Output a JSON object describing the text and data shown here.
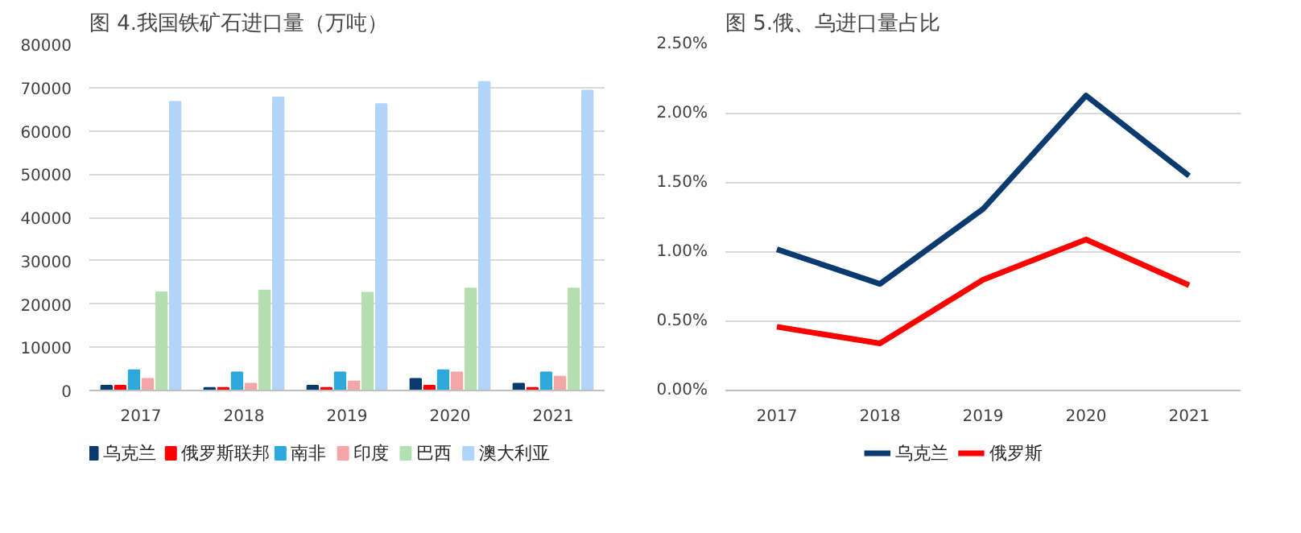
{
  "chart_data": [
    {
      "type": "bar",
      "title": "图 4.我国铁矿石进口量（万吨）",
      "categories": [
        "2017",
        "2018",
        "2019",
        "2020",
        "2021"
      ],
      "series": [
        {
          "name": "乌克兰",
          "color": "#0b3a6e",
          "values": [
            1100,
            600,
            1100,
            2700,
            1600
          ]
        },
        {
          "name": "俄罗斯联邦",
          "color": "#ff0000",
          "values": [
            1100,
            600,
            600,
            1100,
            600
          ]
        },
        {
          "name": "南非",
          "color": "#2ea8dc",
          "values": [
            4700,
            4200,
            4200,
            4700,
            4200
          ]
        },
        {
          "name": "印度",
          "color": "#f4a6a6",
          "values": [
            2700,
            1600,
            2100,
            4200,
            3200
          ]
        },
        {
          "name": "巴西",
          "color": "#b3dfb3",
          "values": [
            22700,
            23100,
            22600,
            23600,
            23600
          ]
        },
        {
          "name": "澳大利亚",
          "color": "#b0d4fa",
          "values": [
            66700,
            67700,
            66200,
            71300,
            69300
          ]
        }
      ],
      "ylim": [
        0,
        80000
      ],
      "yticks": [
        0,
        10000,
        20000,
        30000,
        40000,
        50000,
        60000,
        70000,
        80000
      ],
      "grid": "y",
      "legend": "bottom"
    },
    {
      "type": "line",
      "title": "图 5.俄、乌进口量占比",
      "categories": [
        "2017",
        "2018",
        "2019",
        "2020",
        "2021"
      ],
      "series": [
        {
          "name": "乌克兰",
          "color": "#0b3a6e",
          "values": [
            1.02,
            0.77,
            1.31,
            2.13,
            1.55
          ]
        },
        {
          "name": "俄罗斯",
          "color": "#ff0000",
          "values": [
            0.46,
            0.34,
            0.8,
            1.09,
            0.76
          ]
        }
      ],
      "ylim": [
        0,
        2.5
      ],
      "yticks": [
        {
          "value": 0,
          "label": "0.00%"
        },
        {
          "value": 0.5,
          "label": "0.50%"
        },
        {
          "value": 1.0,
          "label": "1.00%"
        },
        {
          "value": 1.5,
          "label": "1.50%"
        },
        {
          "value": 2.0,
          "label": "2.00%"
        },
        {
          "value": 2.5,
          "label": "2.50%"
        }
      ],
      "grid": "y",
      "legend": "bottom",
      "line_style": "solid",
      "marker": "none"
    }
  ]
}
